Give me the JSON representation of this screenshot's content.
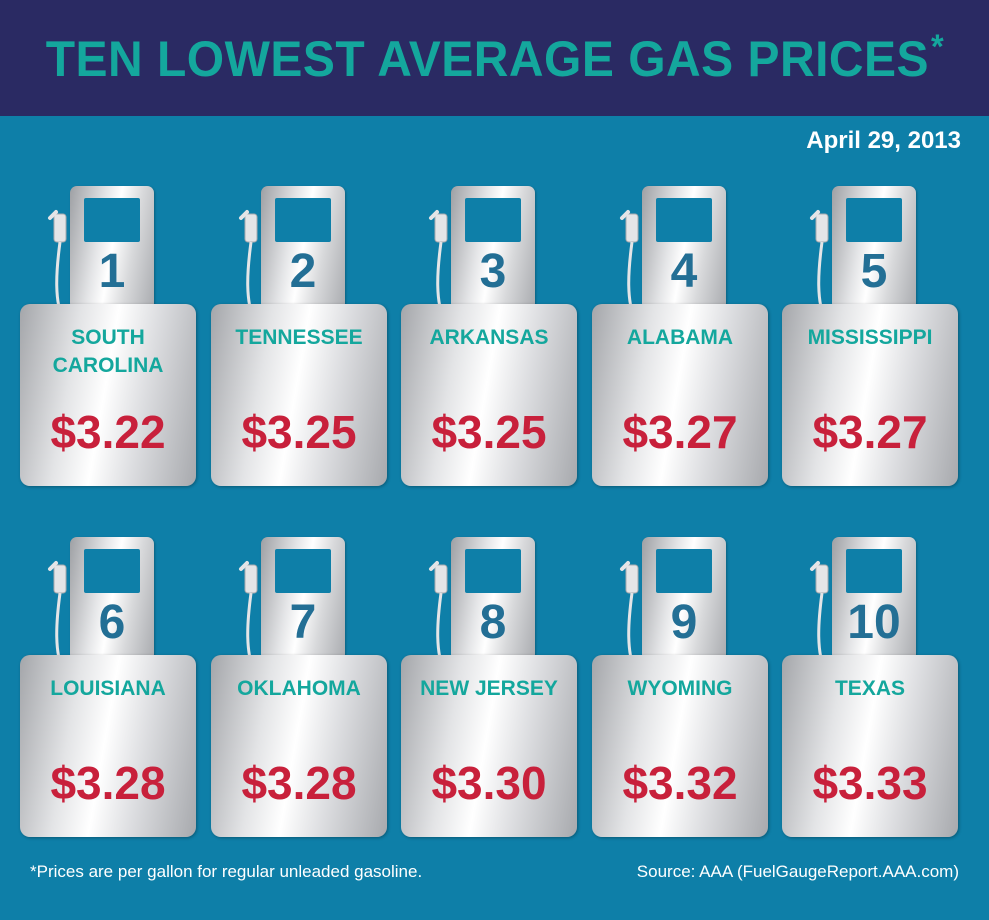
{
  "header": {
    "title": "TEN LOWEST AVERAGE GAS PRICES",
    "asterisk": "*"
  },
  "date": "April 29, 2013",
  "colors": {
    "background": "#0e7fa8",
    "header_bg": "#2a2a63",
    "title": "#14a79d",
    "state_text": "#14a79d",
    "price_text": "#c8203b",
    "rank_text": "#236f95"
  },
  "pump_icon": "gas-pump-icon",
  "items": [
    {
      "rank": "1",
      "state": "SOUTH\nCAROLINA",
      "price": "$3.22"
    },
    {
      "rank": "2",
      "state": "TENNESSEE",
      "price": "$3.25"
    },
    {
      "rank": "3",
      "state": "ARKANSAS",
      "price": "$3.25"
    },
    {
      "rank": "4",
      "state": "ALABAMA",
      "price": "$3.27"
    },
    {
      "rank": "5",
      "state": "MISSISSIPPI",
      "price": "$3.27"
    },
    {
      "rank": "6",
      "state": "LOUISIANA",
      "price": "$3.28"
    },
    {
      "rank": "7",
      "state": "OKLAHOMA",
      "price": "$3.28"
    },
    {
      "rank": "8",
      "state": "NEW JERSEY",
      "price": "$3.30"
    },
    {
      "rank": "9",
      "state": "WYOMING",
      "price": "$3.32"
    },
    {
      "rank": "10",
      "state": "TEXAS",
      "price": "$3.33"
    }
  ],
  "footnote": "*Prices are per gallon for regular unleaded gasoline.",
  "source": "Source: AAA (FuelGaugeReport.AAA.com)"
}
